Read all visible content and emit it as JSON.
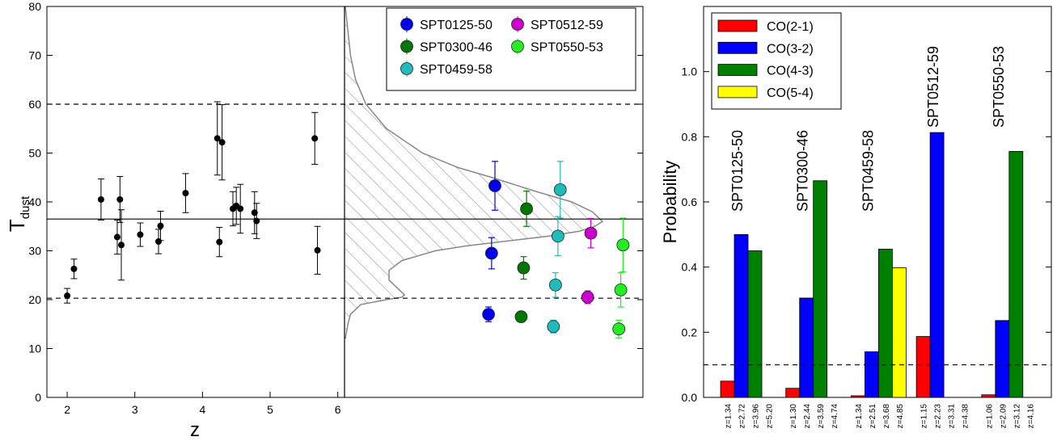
{
  "chart_data": [
    {
      "type": "scatter",
      "xlabel": "z",
      "ylabel": "T",
      "ylabel_sub": "dust",
      "xlim": [
        1.7,
        6.1
      ],
      "ylim": [
        0,
        80
      ],
      "xticks": [
        2,
        3,
        4,
        5,
        6
      ],
      "yticks": [
        0,
        10,
        20,
        30,
        40,
        50,
        60,
        70,
        80
      ],
      "color": "#000000",
      "x": [
        2.0,
        2.1,
        2.5,
        2.74,
        2.78,
        2.8,
        3.08,
        3.35,
        3.38,
        3.75,
        4.22,
        4.25,
        4.29,
        4.45,
        4.5,
        4.56,
        4.77,
        4.8,
        5.66,
        5.7
      ],
      "y": [
        20.8,
        26.3,
        40.5,
        32.8,
        40.5,
        31.2,
        33.3,
        31.9,
        35.1,
        41.8,
        53,
        31.8,
        52.2,
        38.6,
        39.2,
        38.6,
        37.8,
        36.1,
        53,
        30.1
      ],
      "errors": [
        1.5,
        2,
        4.2,
        3.5,
        4.7,
        7.2,
        2.4,
        2.5,
        3,
        4,
        7.5,
        3,
        7.7,
        3.5,
        3.8,
        5,
        4.3,
        3.6,
        5.3,
        4.9
      ],
      "hlines": [
        {
          "value": 60,
          "style": "dashed"
        },
        {
          "value": 36.5,
          "style": "solid"
        },
        {
          "value": 20.3,
          "style": "dashed"
        }
      ],
      "distribution": {
        "t": [
          80,
          75,
          70,
          65,
          60,
          55,
          50,
          47,
          45,
          42,
          40,
          38,
          37,
          36,
          35,
          34,
          33,
          32,
          31,
          30,
          28,
          26,
          24,
          22,
          21,
          20.5,
          20,
          19,
          17,
          15,
          12
        ],
        "density": [
          0,
          0.01,
          0.02,
          0.04,
          0.08,
          0.16,
          0.3,
          0.44,
          0.57,
          0.75,
          0.88,
          0.96,
          0.98,
          1,
          0.97,
          0.91,
          0.79,
          0.63,
          0.47,
          0.35,
          0.22,
          0.17,
          0.17,
          0.21,
          0.23,
          0.22,
          0.16,
          0.06,
          0.02,
          0.01,
          0
        ]
      },
      "legend": "upper right",
      "series": [
        {
          "name": "SPT0125-50",
          "color": "#0000ee",
          "values": [
            43.3,
            29.5,
            17
          ],
          "errors": [
            5,
            3.2,
            1.5
          ]
        },
        {
          "name": "SPT0300-46",
          "color": "#007700",
          "values": [
            38.6,
            26.5,
            16.5
          ],
          "errors": [
            3.6,
            2.3,
            1
          ]
        },
        {
          "name": "SPT0459-58",
          "color": "#22bbbb",
          "values": [
            42.5,
            33,
            23,
            14.5
          ],
          "errors": [
            5.8,
            4,
            2.5,
            1.3
          ]
        },
        {
          "name": "SPT0512-59",
          "color": "#cc00cc",
          "values": [
            33.6,
            20.5
          ],
          "errors": [
            3,
            1.3
          ]
        },
        {
          "name": "SPT0550-53",
          "color": "#22ee22",
          "values": [
            31.2,
            22,
            14
          ],
          "errors": [
            5.5,
            3.5,
            1.8
          ]
        }
      ]
    },
    {
      "type": "bar",
      "ylabel": "Probability",
      "ylim": [
        0,
        1.2
      ],
      "yticks": [
        {
          "value": 0,
          "label": "0.0"
        },
        {
          "value": 0.2,
          "label": "0.2"
        },
        {
          "value": 0.4,
          "label": "0.4"
        },
        {
          "value": 0.6,
          "label": "0.6"
        },
        {
          "value": 0.8,
          "label": "0.8"
        },
        {
          "value": 1.0,
          "label": "1.0"
        }
      ],
      "hline": 0.1,
      "legend": "upper left",
      "categories": [
        "SPT0125-50",
        "SPT0300-46",
        "SPT0459-58",
        "SPT0512-59",
        "SPT0550-53"
      ],
      "z_labels": [
        [
          "z=1.34",
          "z=2.72",
          "z=3.96",
          "z=5.20"
        ],
        [
          "z=1.30",
          "z=2.44",
          "z=3.59",
          "z=4.74"
        ],
        [
          "z=1.34",
          "z=2.51",
          "z=3.68",
          "z=4.85"
        ],
        [
          "z=1.15",
          "z=2.23",
          "z=3.31",
          "z=4.38"
        ],
        [
          "z=1.06",
          "z=2.09",
          "z=3.12",
          "z=4.16"
        ]
      ],
      "series": [
        {
          "name": "CO(2-1)",
          "color": "#ff0000",
          "values": [
            0.05,
            0.028,
            0.005,
            0.187,
            0.008
          ]
        },
        {
          "name": "CO(3-2)",
          "color": "#0000ff",
          "values": [
            0.5,
            0.305,
            0.14,
            0.813,
            0.236
          ]
        },
        {
          "name": "CO(4-3)",
          "color": "#008000",
          "values": [
            0.45,
            0.665,
            0.455,
            0,
            0.755
          ]
        },
        {
          "name": "CO(5-4)",
          "color": "#ffff00",
          "values": [
            0,
            0,
            0.398,
            0,
            0
          ]
        }
      ]
    }
  ]
}
